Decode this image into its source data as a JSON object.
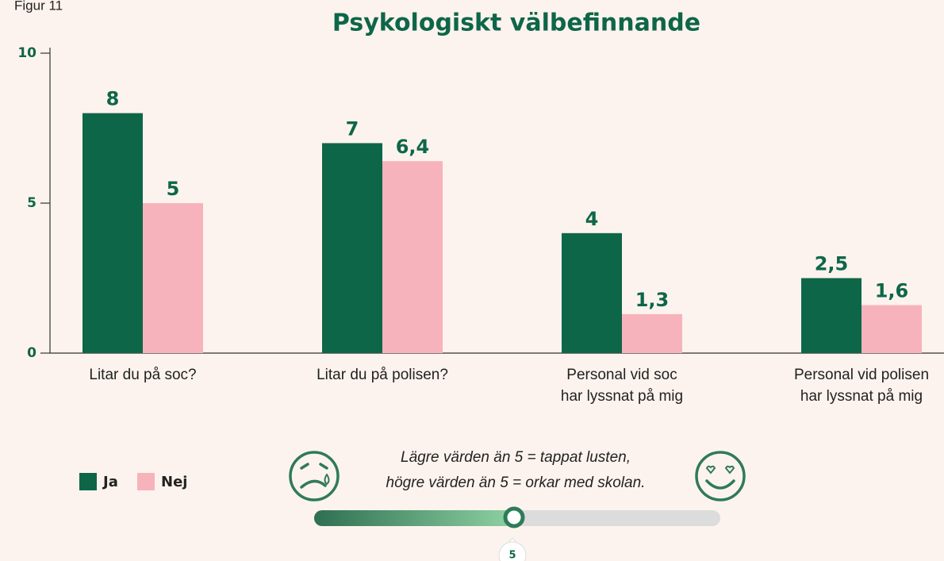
{
  "figure_label": "Figur 11",
  "chart_data": {
    "type": "bar",
    "title": "Psykologiskt välbefinnande",
    "categories": [
      [
        "Litar du på soc?"
      ],
      [
        "Litar du på polisen?"
      ],
      [
        "Personal vid soc",
        "har lyssnat på mig"
      ],
      [
        "Personal vid polisen",
        "har lyssnat på mig"
      ]
    ],
    "series": [
      {
        "name": "Ja",
        "color": "#0e6649",
        "values": [
          8,
          7,
          4,
          2.5
        ],
        "value_labels": [
          "8",
          "7",
          "4",
          "2,5"
        ]
      },
      {
        "name": "Nej",
        "color": "#f7b3bc",
        "values": [
          5,
          6.4,
          1.3,
          1.6
        ],
        "value_labels": [
          "5",
          "6,4",
          "1,3",
          "1,6"
        ]
      }
    ],
    "ylim": [
      0,
      10
    ],
    "yticks": [
      0,
      5,
      10
    ],
    "grid": false,
    "legend": "bottom-left"
  },
  "note": [
    "Lägre värden än 5 = tappat lusten,",
    "högre värden än 5 = orkar med skolan."
  ],
  "slider_label": "5"
}
